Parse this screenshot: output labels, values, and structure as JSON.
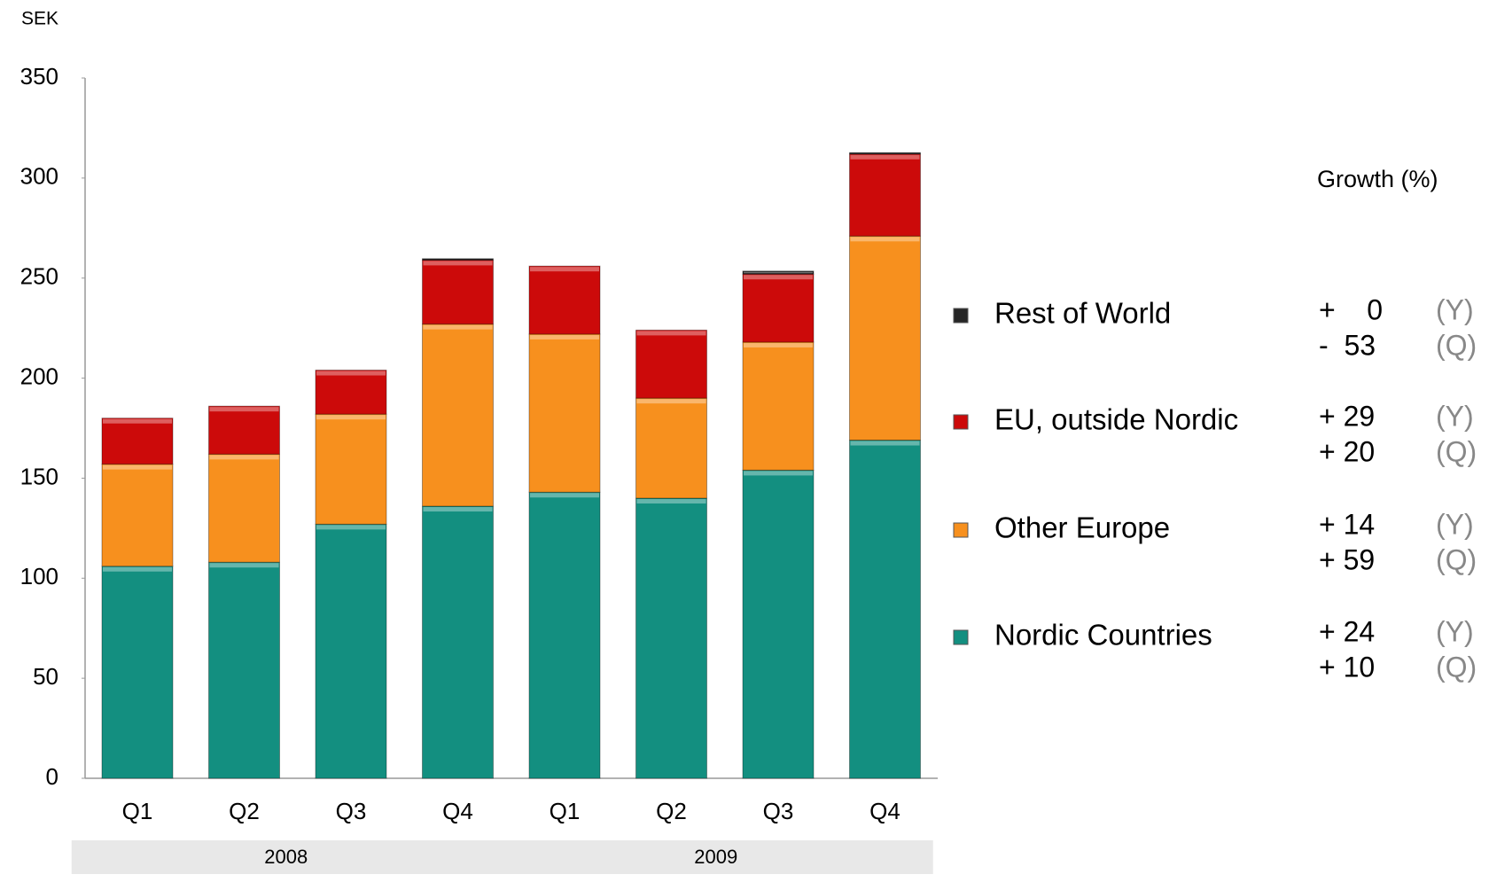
{
  "chart_data": {
    "type": "stacked_bar",
    "y_label": "SEK",
    "categories": [
      "Q1",
      "Q2",
      "Q3",
      "Q4",
      "Q1",
      "Q2",
      "Q3",
      "Q4"
    ],
    "groups": [
      "2008",
      "2009"
    ],
    "series": [
      {
        "name": "Nordic Countries",
        "color": "#138f80",
        "values": [
          106,
          108,
          127,
          136,
          143,
          140,
          154,
          169
        ],
        "growth": [
          "+ 24",
          "+ 10"
        ]
      },
      {
        "name": "Other Europe",
        "color": "#f7901e",
        "values": [
          51,
          54,
          55,
          91,
          79,
          50,
          64,
          102
        ],
        "growth": [
          "+ 14",
          "+ 59"
        ]
      },
      {
        "name": "EU, outside Nordic",
        "color": "#cc0a0a",
        "values": [
          23,
          24,
          22,
          32,
          34,
          34,
          34,
          41
        ],
        "growth": [
          "+ 29",
          "+ 20"
        ]
      },
      {
        "name": "Rest of World",
        "color": "#262626",
        "values": [
          0,
          0,
          0,
          0.7,
          0,
          0,
          1.5,
          0.7
        ],
        "growth": [
          "+    0",
          "-  53"
        ]
      }
    ],
    "growth_title": "Growth (%)",
    "growth_periods": [
      "(Y)",
      "(Q)"
    ],
    "ylim": [
      0,
      350
    ],
    "yticks": [
      0,
      50,
      100,
      150,
      200,
      250,
      300,
      350
    ],
    "grid": false
  }
}
